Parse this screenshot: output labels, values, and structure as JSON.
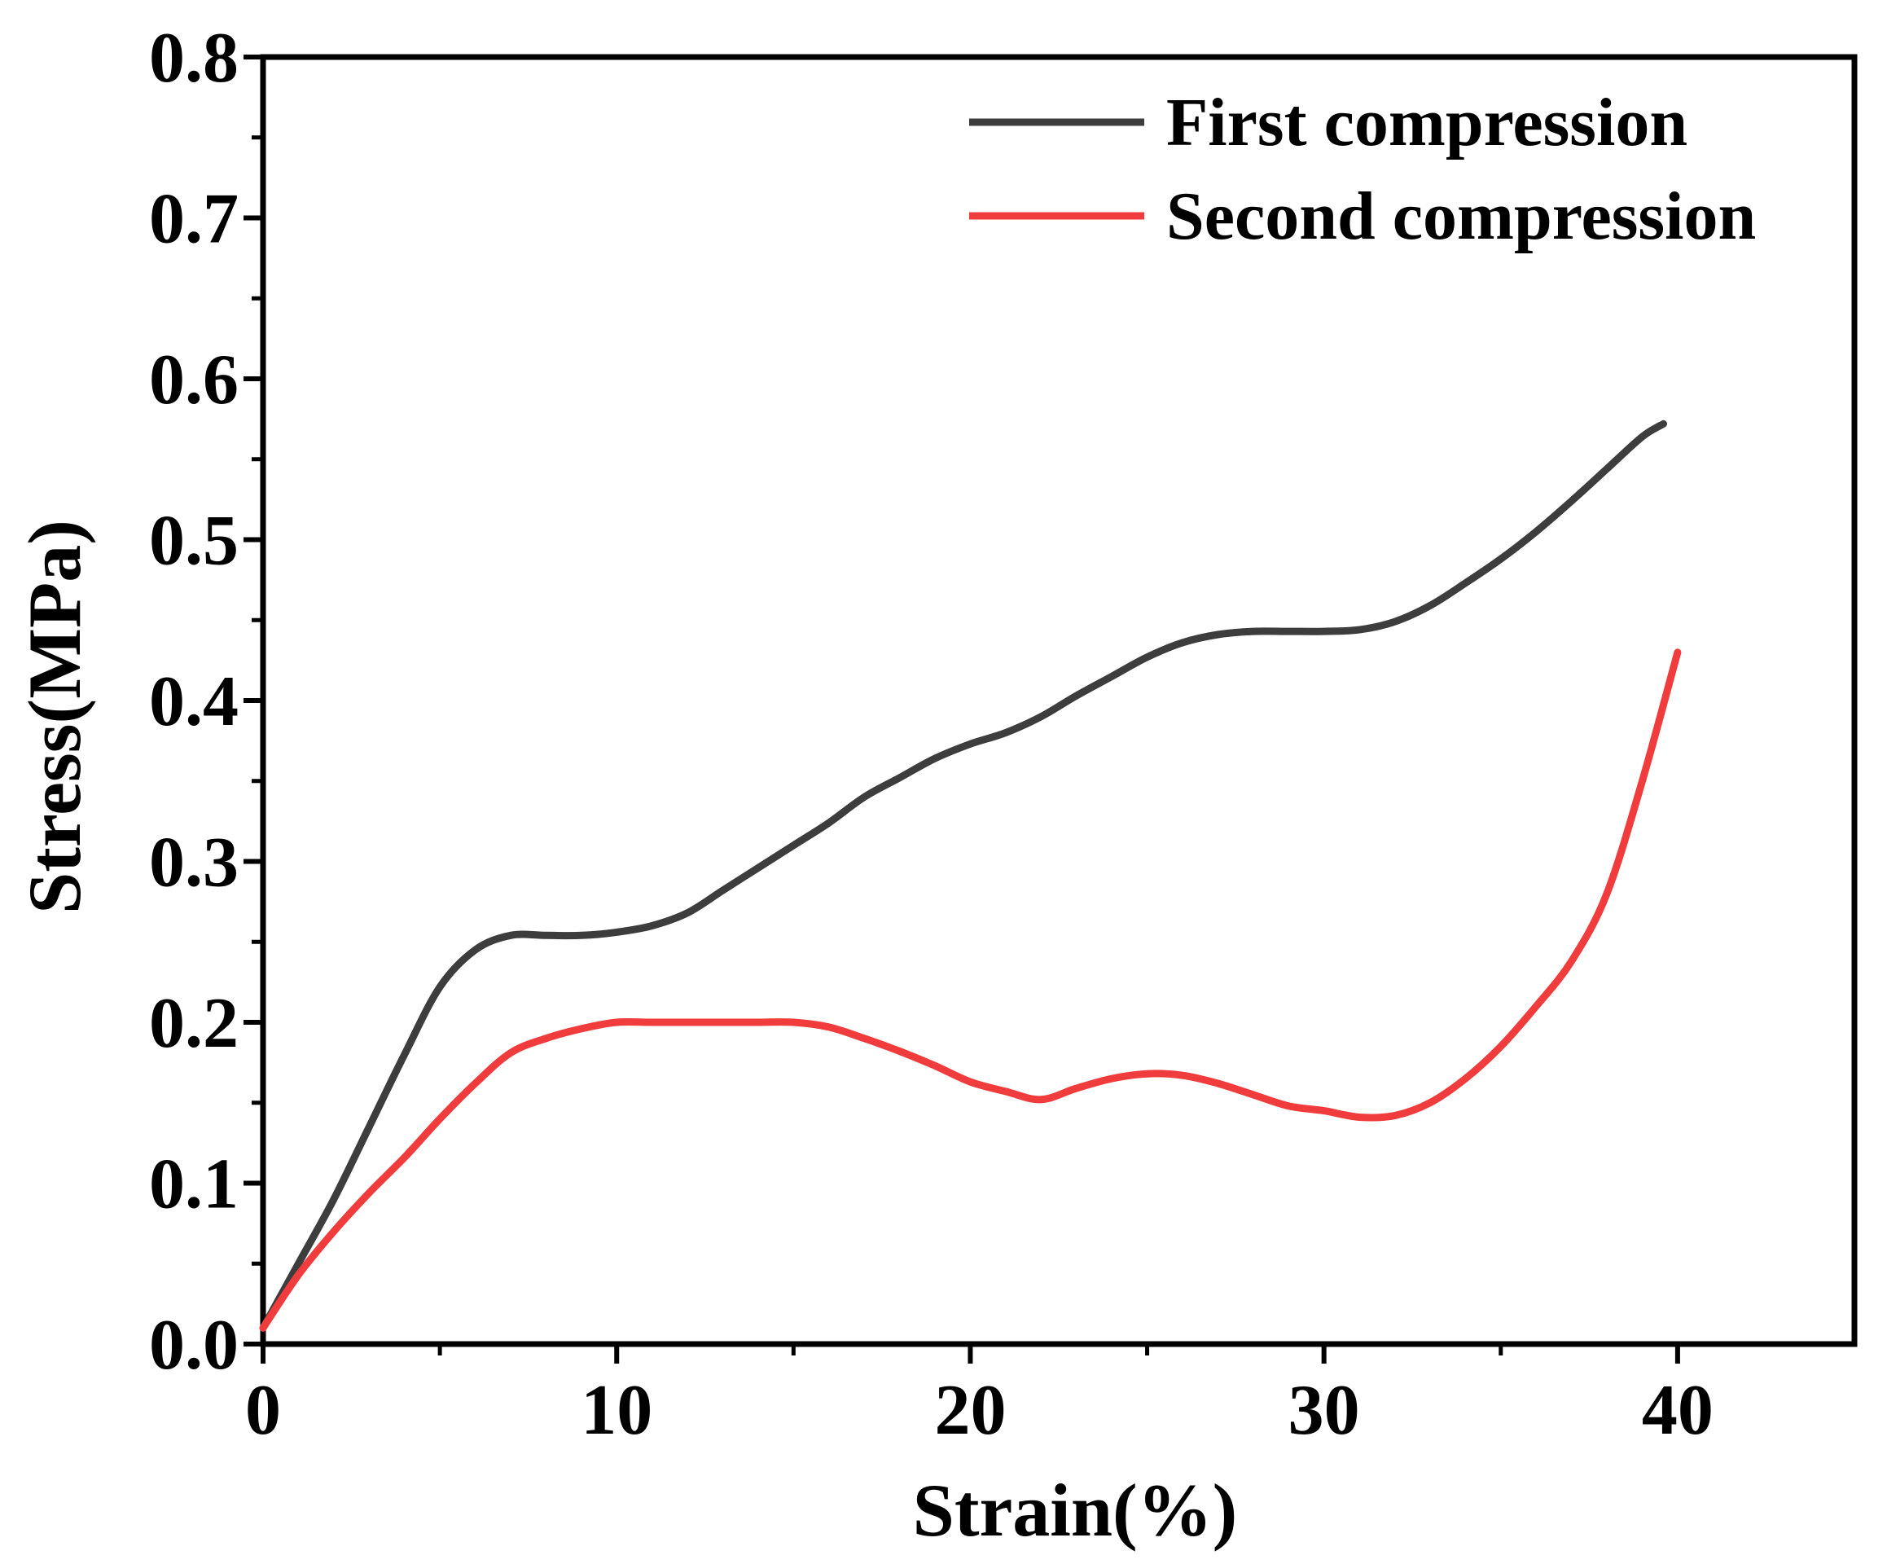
{
  "chart_data": {
    "type": "line",
    "title": "",
    "xlabel": "Strain(%)",
    "ylabel": "Stress(MPa)",
    "xlim": [
      0,
      45
    ],
    "ylim": [
      0,
      0.8
    ],
    "x_ticks": [
      0,
      10,
      20,
      30,
      40
    ],
    "x_tick_labels": [
      "0",
      "10",
      "20",
      "30",
      "40"
    ],
    "y_ticks": [
      0,
      0.1,
      0.2,
      0.3,
      0.4,
      0.5,
      0.6,
      0.7,
      0.8
    ],
    "y_tick_labels": [
      "0.0",
      "0.1",
      "0.2",
      "0.3",
      "0.4",
      "0.5",
      "0.6",
      "0.7",
      "0.8"
    ],
    "legend_position": "top-right",
    "grid": false,
    "series": [
      {
        "name": "First compression",
        "color": "#3d3d3d",
        "x": [
          0,
          1,
          2,
          3,
          4,
          5,
          6,
          7,
          8,
          9,
          10,
          11,
          12,
          13,
          14,
          15,
          16,
          17,
          18,
          19,
          20,
          21,
          22,
          23,
          24,
          25,
          26,
          27,
          28,
          29,
          30,
          31,
          32,
          33,
          34,
          35,
          36,
          37,
          38,
          39,
          39.6
        ],
        "y": [
          0.01,
          0.05,
          0.09,
          0.135,
          0.18,
          0.222,
          0.245,
          0.254,
          0.254,
          0.254,
          0.256,
          0.26,
          0.268,
          0.282,
          0.296,
          0.31,
          0.324,
          0.34,
          0.352,
          0.364,
          0.373,
          0.38,
          0.39,
          0.403,
          0.415,
          0.427,
          0.436,
          0.441,
          0.443,
          0.443,
          0.443,
          0.444,
          0.449,
          0.459,
          0.473,
          0.488,
          0.505,
          0.524,
          0.544,
          0.564,
          0.572
        ]
      },
      {
        "name": "Second compression",
        "color": "#f03c3c",
        "x": [
          0,
          1,
          2,
          3,
          4,
          5,
          6,
          7,
          8,
          9,
          10,
          11,
          12,
          13,
          14,
          15,
          16,
          17,
          18,
          19,
          20,
          21,
          22,
          23,
          24,
          25,
          26,
          27,
          28,
          29,
          30,
          31,
          32,
          33,
          34,
          35,
          36,
          37,
          38,
          39,
          40
        ],
        "y": [
          0.01,
          0.043,
          0.07,
          0.094,
          0.116,
          0.14,
          0.162,
          0.181,
          0.19,
          0.196,
          0.2,
          0.2,
          0.2,
          0.2,
          0.2,
          0.2,
          0.197,
          0.19,
          0.182,
          0.173,
          0.163,
          0.157,
          0.152,
          0.159,
          0.165,
          0.168,
          0.167,
          0.162,
          0.155,
          0.148,
          0.145,
          0.141,
          0.142,
          0.15,
          0.165,
          0.185,
          0.21,
          0.238,
          0.28,
          0.35,
          0.43
        ]
      }
    ]
  }
}
